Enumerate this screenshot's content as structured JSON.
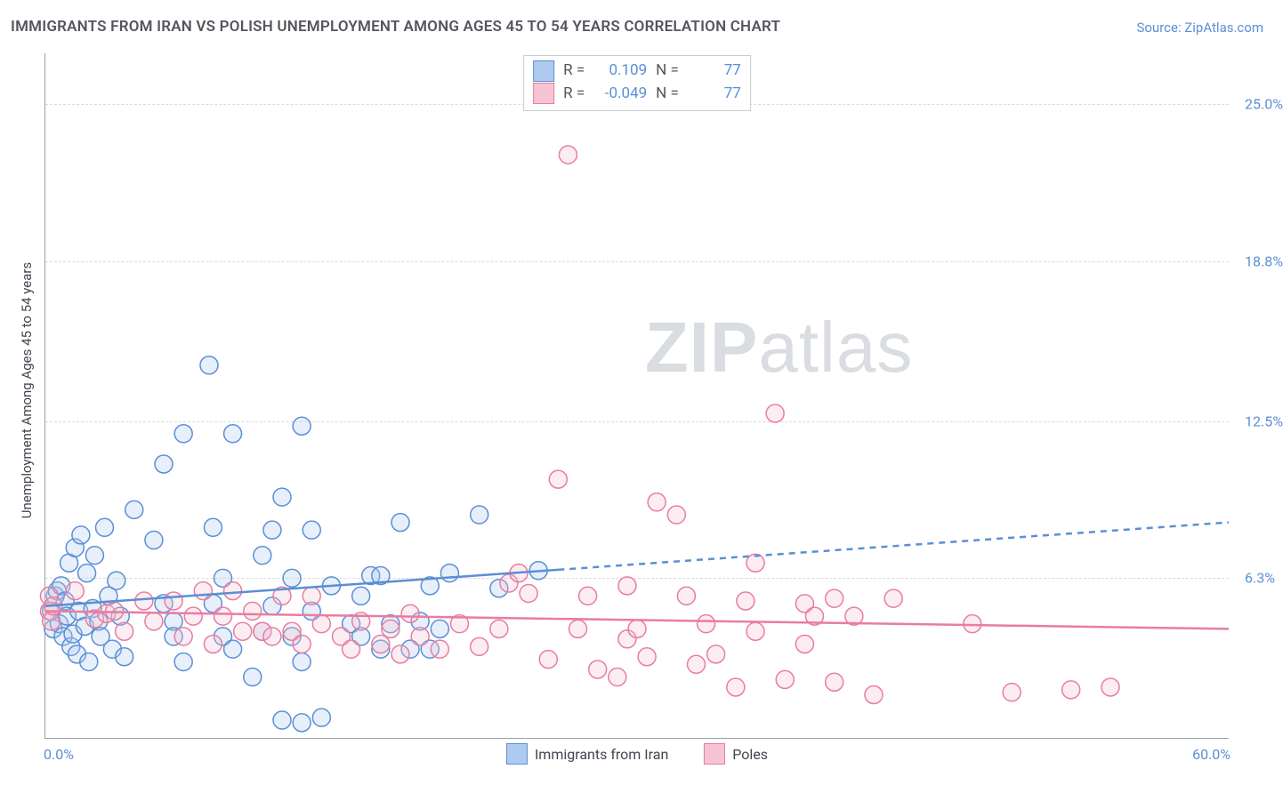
{
  "title": "IMMIGRANTS FROM IRAN VS POLISH UNEMPLOYMENT AMONG AGES 45 TO 54 YEARS CORRELATION CHART",
  "source": {
    "label": "Source: ZipAtlas.com"
  },
  "y_axis": {
    "label": "Unemployment Among Ages 45 to 54 years"
  },
  "watermark": {
    "zip": "ZIP",
    "atlas": "atlas"
  },
  "chart": {
    "type": "scatter",
    "xlim": [
      0,
      60
    ],
    "ylim": [
      0,
      27
    ],
    "x_ticks": [
      {
        "v": 0,
        "label": "0.0%"
      },
      {
        "v": 60,
        "label": "60.0%"
      }
    ],
    "y_ticks": [
      {
        "v": 6.3,
        "label": "6.3%"
      },
      {
        "v": 12.5,
        "label": "12.5%"
      },
      {
        "v": 18.8,
        "label": "18.8%"
      },
      {
        "v": 25.0,
        "label": "25.0%"
      }
    ],
    "grid_color": "#d8dadd",
    "axis_color": "#9aa0a6",
    "background_color": "#ffffff",
    "tick_label_color": "#5a8fd6",
    "title_color": "#555560",
    "marker_radius": 10,
    "marker_stroke_width": 1.5,
    "marker_fill_opacity": 0.3,
    "series": [
      {
        "id": "iran",
        "label": "Immigrants from Iran",
        "color_stroke": "#5a8fd6",
        "color_fill": "#aecbef",
        "r_value": "0.109",
        "n_value": "77",
        "trend": {
          "y_at_x0": 5.2,
          "y_at_x60": 8.5,
          "solid_until_x": 26,
          "stroke_width": 2.5,
          "dash": "7,6"
        },
        "points": [
          [
            0.3,
            5.0
          ],
          [
            0.4,
            4.3
          ],
          [
            0.5,
            5.6
          ],
          [
            0.6,
            5.8
          ],
          [
            0.7,
            4.5
          ],
          [
            0.8,
            6.0
          ],
          [
            0.9,
            4.0
          ],
          [
            1.0,
            5.4
          ],
          [
            1.1,
            4.8
          ],
          [
            1.2,
            6.9
          ],
          [
            1.3,
            3.6
          ],
          [
            1.4,
            4.1
          ],
          [
            1.5,
            7.5
          ],
          [
            1.6,
            3.3
          ],
          [
            1.7,
            5.0
          ],
          [
            1.8,
            8.0
          ],
          [
            2.0,
            4.4
          ],
          [
            2.1,
            6.5
          ],
          [
            2.2,
            3.0
          ],
          [
            2.4,
            5.1
          ],
          [
            2.5,
            7.2
          ],
          [
            2.7,
            4.6
          ],
          [
            2.8,
            4.0
          ],
          [
            3.0,
            8.3
          ],
          [
            3.2,
            5.6
          ],
          [
            3.4,
            3.5
          ],
          [
            3.6,
            6.2
          ],
          [
            3.8,
            4.8
          ],
          [
            4.0,
            3.2
          ],
          [
            4.5,
            9.0
          ],
          [
            5.5,
            7.8
          ],
          [
            6.0,
            10.8
          ],
          [
            6.0,
            5.3
          ],
          [
            6.5,
            4.6
          ],
          [
            6.5,
            4.0
          ],
          [
            7.0,
            3.0
          ],
          [
            7.0,
            12.0
          ],
          [
            8.3,
            14.7
          ],
          [
            8.5,
            8.3
          ],
          [
            8.5,
            5.3
          ],
          [
            9.0,
            4.0
          ],
          [
            9.0,
            6.3
          ],
          [
            9.5,
            3.5
          ],
          [
            9.5,
            12.0
          ],
          [
            10.5,
            2.4
          ],
          [
            11.0,
            7.2
          ],
          [
            11.0,
            4.2
          ],
          [
            11.5,
            5.2
          ],
          [
            11.5,
            8.2
          ],
          [
            12.0,
            9.5
          ],
          [
            12.0,
            0.7
          ],
          [
            12.5,
            6.3
          ],
          [
            12.5,
            4.0
          ],
          [
            13.0,
            12.3
          ],
          [
            13.0,
            3.0
          ],
          [
            13.0,
            0.6
          ],
          [
            13.5,
            8.2
          ],
          [
            13.5,
            5.0
          ],
          [
            14.0,
            0.8
          ],
          [
            14.5,
            6.0
          ],
          [
            15.5,
            4.5
          ],
          [
            16.0,
            5.6
          ],
          [
            16.0,
            4.0
          ],
          [
            16.5,
            6.4
          ],
          [
            17.0,
            6.4
          ],
          [
            17.0,
            3.5
          ],
          [
            17.5,
            4.5
          ],
          [
            18.0,
            8.5
          ],
          [
            18.5,
            3.5
          ],
          [
            19.0,
            4.6
          ],
          [
            19.5,
            3.5
          ],
          [
            19.5,
            6.0
          ],
          [
            20.0,
            4.3
          ],
          [
            20.5,
            6.5
          ],
          [
            22.0,
            8.8
          ],
          [
            23.0,
            5.9
          ],
          [
            25.0,
            6.6
          ]
        ]
      },
      {
        "id": "poles",
        "label": "Poles",
        "color_stroke": "#e97ca0",
        "color_fill": "#f6c3d4",
        "r_value": "-0.049",
        "n_value": "77",
        "trend": {
          "y_at_x0": 5.0,
          "y_at_x60": 4.3,
          "solid_until_x": 60,
          "stroke_width": 2.5,
          "dash": null
        },
        "points": [
          [
            0.2,
            5.6
          ],
          [
            0.2,
            5.0
          ],
          [
            0.3,
            4.6
          ],
          [
            0.4,
            5.2
          ],
          [
            1.5,
            5.8
          ],
          [
            2.5,
            4.7
          ],
          [
            3.1,
            4.9
          ],
          [
            3.5,
            5.0
          ],
          [
            4.0,
            4.2
          ],
          [
            5.0,
            5.4
          ],
          [
            5.5,
            4.6
          ],
          [
            6.5,
            5.4
          ],
          [
            7.0,
            4.0
          ],
          [
            7.5,
            4.8
          ],
          [
            8.0,
            5.8
          ],
          [
            8.5,
            3.7
          ],
          [
            9.0,
            4.8
          ],
          [
            9.5,
            5.8
          ],
          [
            10.0,
            4.2
          ],
          [
            10.5,
            5.0
          ],
          [
            11.0,
            4.2
          ],
          [
            11.5,
            4.0
          ],
          [
            12.0,
            5.6
          ],
          [
            12.5,
            4.2
          ],
          [
            13.0,
            3.7
          ],
          [
            13.5,
            5.6
          ],
          [
            14.0,
            4.5
          ],
          [
            15.0,
            4.0
          ],
          [
            15.5,
            3.5
          ],
          [
            16.0,
            4.6
          ],
          [
            17.0,
            3.7
          ],
          [
            17.5,
            4.3
          ],
          [
            18.0,
            3.3
          ],
          [
            18.5,
            4.9
          ],
          [
            19.0,
            4.0
          ],
          [
            20.0,
            3.5
          ],
          [
            21.0,
            4.5
          ],
          [
            22.0,
            3.6
          ],
          [
            23.0,
            4.3
          ],
          [
            23.5,
            6.1
          ],
          [
            24.0,
            6.5
          ],
          [
            24.5,
            5.7
          ],
          [
            25.5,
            3.1
          ],
          [
            26.0,
            10.2
          ],
          [
            26.5,
            23.0
          ],
          [
            27.0,
            4.3
          ],
          [
            27.5,
            5.6
          ],
          [
            28.0,
            2.7
          ],
          [
            29.0,
            2.4
          ],
          [
            29.5,
            3.9
          ],
          [
            29.5,
            6.0
          ],
          [
            30.0,
            4.3
          ],
          [
            30.5,
            3.2
          ],
          [
            31.0,
            9.3
          ],
          [
            32.0,
            8.8
          ],
          [
            32.5,
            5.6
          ],
          [
            33.0,
            2.9
          ],
          [
            33.5,
            4.5
          ],
          [
            34.0,
            3.3
          ],
          [
            35.0,
            2.0
          ],
          [
            35.5,
            5.4
          ],
          [
            36.0,
            4.2
          ],
          [
            36.0,
            6.9
          ],
          [
            37.0,
            12.8
          ],
          [
            37.5,
            2.3
          ],
          [
            38.5,
            5.3
          ],
          [
            38.5,
            3.7
          ],
          [
            39.0,
            4.8
          ],
          [
            40.0,
            2.2
          ],
          [
            40.0,
            5.5
          ],
          [
            41.0,
            4.8
          ],
          [
            42.0,
            1.7
          ],
          [
            43.0,
            5.5
          ],
          [
            47.0,
            4.5
          ],
          [
            49.0,
            1.8
          ],
          [
            52.0,
            1.9
          ],
          [
            54.0,
            2.0
          ]
        ]
      }
    ],
    "stats_box": {
      "r_label": "R =",
      "n_label": "N ="
    },
    "legend_bottom": true
  }
}
